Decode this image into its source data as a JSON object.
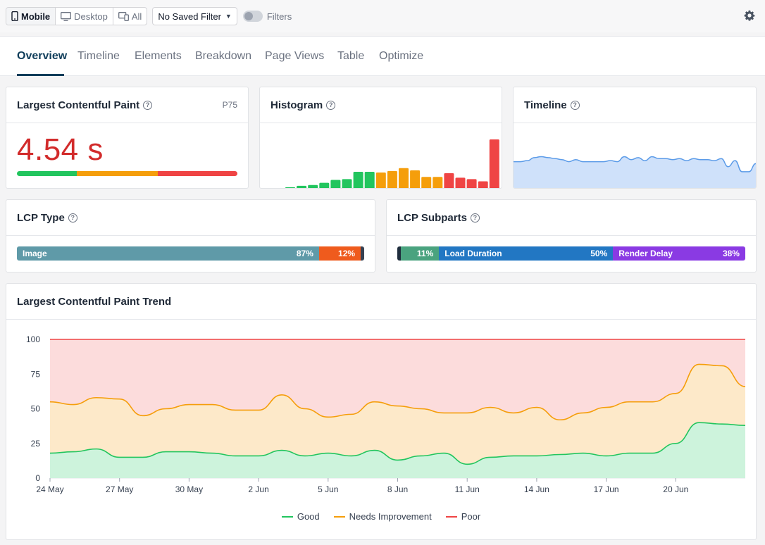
{
  "topbar": {
    "device_buttons": [
      {
        "label": "Mobile",
        "icon": "mobile-icon",
        "active": true
      },
      {
        "label": "Desktop",
        "icon": "desktop-icon",
        "active": false
      },
      {
        "label": "All",
        "icon": "devices-icon",
        "active": false
      }
    ],
    "saved_filter": "No Saved Filter",
    "filters_label": "Filters",
    "filters_enabled": false
  },
  "tabs": [
    "Overview",
    "Timeline",
    "Elements",
    "Breakdown",
    "Page Views",
    "Table",
    "Optimize"
  ],
  "active_tab": "Overview",
  "lcp_card": {
    "title": "Largest Contentful Paint",
    "percentile": "P75",
    "value": "4.54 s",
    "distribution": [
      {
        "label": "good",
        "fraction": 0.27,
        "color": "#22c55e"
      },
      {
        "label": "needs-improvement",
        "fraction": 0.37,
        "color": "#f59e0b"
      },
      {
        "label": "poor",
        "fraction": 0.36,
        "color": "#ef4444"
      }
    ]
  },
  "histogram_card": {
    "title": "Histogram",
    "bins": [
      {
        "value": 2,
        "rating": "good"
      },
      {
        "value": 4,
        "rating": "good"
      },
      {
        "value": 5,
        "rating": "good"
      },
      {
        "value": 8,
        "rating": "good"
      },
      {
        "value": 12,
        "rating": "good"
      },
      {
        "value": 13,
        "rating": "good"
      },
      {
        "value": 23,
        "rating": "good"
      },
      {
        "value": 23,
        "rating": "good"
      },
      {
        "value": 22,
        "rating": "ni"
      },
      {
        "value": 24,
        "rating": "ni"
      },
      {
        "value": 28,
        "rating": "ni"
      },
      {
        "value": 25,
        "rating": "ni"
      },
      {
        "value": 16,
        "rating": "ni"
      },
      {
        "value": 16,
        "rating": "ni"
      },
      {
        "value": 21,
        "rating": "poor"
      },
      {
        "value": 15,
        "rating": "poor"
      },
      {
        "value": 13,
        "rating": "poor"
      },
      {
        "value": 10,
        "rating": "poor"
      },
      {
        "value": 67,
        "rating": "poor"
      }
    ],
    "colors": {
      "good": "#22c55e",
      "ni": "#f59e0b",
      "poor": "#ef4444"
    }
  },
  "timeline_card": {
    "title": "Timeline",
    "values": [
      55,
      55,
      56,
      59,
      60,
      59,
      58,
      57,
      55,
      57,
      55,
      55,
      55,
      55,
      56,
      55,
      60,
      57,
      59,
      56,
      60,
      58,
      58,
      57,
      58,
      56,
      58,
      57,
      57,
      56,
      58,
      50,
      56,
      45,
      45,
      53
    ],
    "ylim": [
      0,
      100
    ]
  },
  "lcp_type_card": {
    "title": "LCP Type",
    "segments": [
      {
        "label": "Image",
        "value": "87%",
        "fraction": 0.87,
        "color": "#5f9aa8"
      },
      {
        "label": "",
        "value": "12%",
        "fraction": 0.12,
        "color": "#ef5b1d"
      },
      {
        "label": "",
        "value": "",
        "fraction": 0.01,
        "color": "#374151"
      }
    ]
  },
  "lcp_subparts_card": {
    "title": "LCP Subparts",
    "segments": [
      {
        "label": "",
        "value": "",
        "fraction": 0.01,
        "color": "#1f2d3d"
      },
      {
        "label": "",
        "value": "11%",
        "fraction": 0.11,
        "color": "#4aa37f"
      },
      {
        "label": "Load Duration",
        "value": "50%",
        "fraction": 0.5,
        "color": "#2277c3"
      },
      {
        "label": "Render Delay",
        "value": "38%",
        "fraction": 0.38,
        "color": "#8a3ae3"
      }
    ]
  },
  "trend_card": {
    "title": "Largest Contentful Paint Trend"
  },
  "chart_data": {
    "type": "area",
    "stacked": true,
    "x_tick_labels": [
      "24 May",
      "27 May",
      "30 May",
      "2 Jun",
      "5 Jun",
      "8 Jun",
      "11 Jun",
      "14 Jun",
      "17 Jun",
      "20 Jun"
    ],
    "x_tick_index": [
      0,
      3,
      6,
      9,
      12,
      15,
      18,
      21,
      24,
      27
    ],
    "ylim": [
      0,
      100
    ],
    "y_ticks": [
      0,
      25,
      50,
      75,
      100
    ],
    "grid": true,
    "legend_position": "bottom",
    "series": [
      {
        "name": "Good",
        "color": "#22c55e",
        "fill": "#cdf3dc",
        "values": [
          18,
          19,
          21,
          15,
          15,
          19,
          19,
          18,
          16,
          16,
          20,
          16,
          18,
          16,
          20,
          13,
          16,
          18,
          10,
          15,
          16,
          16,
          17,
          18,
          16,
          18,
          18,
          25,
          40,
          39,
          38
        ]
      },
      {
        "name": "Needs Improvement",
        "color": "#f59e0b",
        "fill": "#fde9c9",
        "values": [
          55,
          53,
          58,
          57,
          45,
          50,
          53,
          53,
          49,
          49,
          60,
          50,
          44,
          46,
          55,
          52,
          50,
          47,
          47,
          51,
          47,
          51,
          42,
          47,
          51,
          55,
          55,
          61,
          82,
          81,
          66
        ]
      },
      {
        "name": "Poor",
        "color": "#ef4444",
        "fill": "#fcdcdc",
        "values": [
          100,
          100,
          100,
          100,
          100,
          100,
          100,
          100,
          100,
          100,
          100,
          100,
          100,
          100,
          100,
          100,
          100,
          100,
          100,
          100,
          100,
          100,
          100,
          100,
          100,
          100,
          100,
          100,
          100,
          100,
          100
        ]
      }
    ]
  }
}
